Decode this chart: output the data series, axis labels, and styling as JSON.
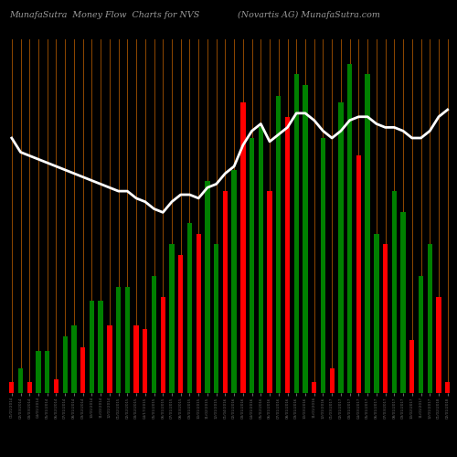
{
  "title_left": "MunafaSutra  Money Flow  Charts for NVS",
  "title_right": "(Novartis AG) MunafaSutra.com",
  "background_color": "#000000",
  "bar_colors": [
    "red",
    "green",
    "red",
    "green",
    "green",
    "red",
    "green",
    "green",
    "red",
    "green",
    "green",
    "red",
    "green",
    "green",
    "red",
    "red",
    "green",
    "red",
    "green",
    "red",
    "green",
    "red",
    "green",
    "green",
    "red",
    "green",
    "red",
    "green",
    "green",
    "red",
    "green",
    "red",
    "green",
    "green",
    "red",
    "green",
    "red",
    "green",
    "green",
    "red",
    "green",
    "green",
    "red",
    "green",
    "green",
    "red",
    "green",
    "green",
    "red",
    "red"
  ],
  "bar_heights": [
    3,
    7,
    3,
    12,
    12,
    4,
    16,
    19,
    13,
    26,
    26,
    19,
    30,
    30,
    19,
    18,
    33,
    27,
    42,
    39,
    48,
    45,
    60,
    42,
    57,
    63,
    82,
    72,
    75,
    57,
    84,
    78,
    90,
    87,
    3,
    72,
    7,
    82,
    93,
    67,
    90,
    45,
    42,
    57,
    51,
    15,
    33,
    42,
    27,
    3
  ],
  "line_values": [
    72,
    68,
    67,
    66,
    65,
    64,
    63,
    62,
    61,
    60,
    59,
    58,
    57,
    57,
    55,
    54,
    52,
    51,
    54,
    56,
    56,
    55,
    58,
    59,
    62,
    64,
    70,
    74,
    76,
    71,
    73,
    75,
    79,
    79,
    77,
    74,
    72,
    74,
    77,
    78,
    78,
    76,
    75,
    75,
    74,
    72,
    72,
    74,
    78,
    80
  ],
  "orange_line_color": "#b85c00",
  "white_line_color": "#ffffff",
  "tick_label_color": "#666666",
  "title_color": "#999999",
  "n_bars": 50,
  "ylim_max": 100,
  "bar_width": 0.55
}
